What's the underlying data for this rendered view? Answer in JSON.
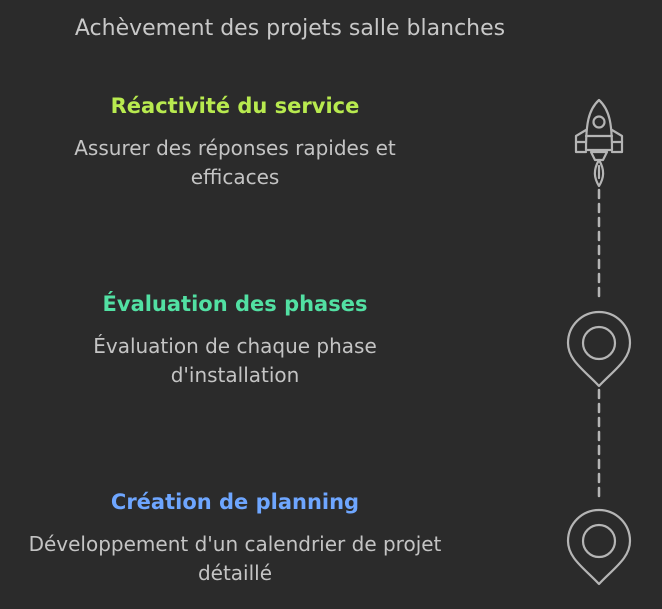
{
  "title": "Achèvement des projets salle blanches",
  "steps": [
    {
      "heading": "Réactivité du service",
      "description": "Assurer des réponses rapides et efficaces",
      "color": "#b8ea4f",
      "icon": "rocket-icon"
    },
    {
      "heading": "Évaluation des phases",
      "description": "Évaluation de chaque phase d'installation",
      "color": "#52e0a3",
      "icon": "map-pin-icon"
    },
    {
      "heading": "Création de planning",
      "description": "Développement d'un calendrier de projet détaillé",
      "color": "#6ea6ff",
      "icon": "map-pin-icon"
    }
  ],
  "colors": {
    "background": "#2b2b2b",
    "text": "#c4c4c4",
    "line": "#b5b5b5"
  }
}
